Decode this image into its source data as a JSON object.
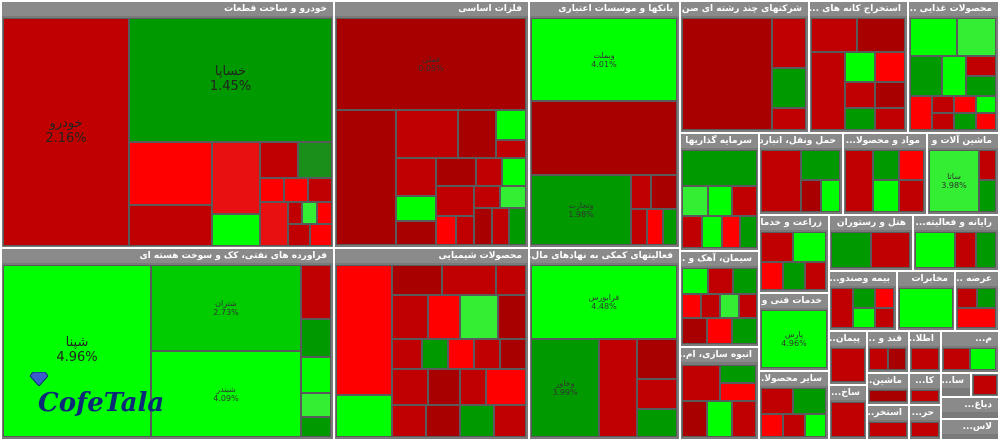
{
  "sectors": {
    "automotive": {
      "title": "خودرو و ساخت قطعات"
    },
    "metals": {
      "title": "فلزات اساسی"
    },
    "banks": {
      "title": "بانکها و موسسات اعتباری"
    },
    "multi": {
      "title": "شرکتهای چند رشته ای صن..."
    },
    "oil": {
      "title": "استخراج کانه های ..."
    },
    "food": {
      "title": "محصولات غذایی ..."
    },
    "it": {
      "title": "فراورده های نفتی، کک و سوخت هسته ای"
    },
    "chem": {
      "title": "محصولات شیمیایی"
    },
    "finance_aux": {
      "title": "فعالیتهای کمکی به نهادهای مال..."
    },
    "invest": {
      "title": "سرمایه گذاریها"
    },
    "transport": {
      "title": "حمل ونقل، انبارد..."
    },
    "materials": {
      "title": "مواد و محصولا..."
    },
    "machinery": {
      "title": "ماشین آلات و ..."
    },
    "farm": {
      "title": "زراعت و خدما..."
    },
    "hotel": {
      "title": "هتل و رستوران"
    },
    "computer": {
      "title": "رایانه و فعالیته..."
    },
    "cement": {
      "title": "سیمان، آهک و ..."
    },
    "insurance": {
      "title": "بیمه وصندو..."
    },
    "telecom": {
      "title": "مخابرات"
    },
    "supply": {
      "title": "عرضه ..."
    },
    "tech": {
      "title": "خدمات فنی و ..."
    },
    "contract": {
      "title": "پیمان..."
    },
    "sugar": {
      "title": "قند و ..."
    },
    "info": {
      "title": "اطلا..."
    },
    "mass": {
      "title": "انبوه سازی، ام..."
    },
    "other": {
      "title": "سایر محصولا..."
    },
    "build": {
      "title": "ساخ..."
    },
    "mach2": {
      "title": "ماشین..."
    },
    "extract": {
      "title": "استخر..."
    },
    "misc1": {
      "title": "م..."
    },
    "misc2": {
      "title": "کا..."
    },
    "misc3": {
      "title": "سا..."
    },
    "misc4": {
      "title": "دباغ..."
    },
    "misc5": {
      "title": "حر..."
    },
    "misc6": {
      "title": "لاس..."
    }
  },
  "tiles": {
    "khodro": {
      "name": "خودرو",
      "pct": "2.16%"
    },
    "khsapa": {
      "name": "خساپا",
      "pct": "1.45%"
    },
    "fameli": {
      "name": "فملی",
      "pct": "0.05%"
    },
    "vbmellat": {
      "name": "وبملت",
      "pct": "4.01%"
    },
    "vtejarat": {
      "name": "وتجارت",
      "pct": "1.98%"
    },
    "shpna": {
      "name": "شپنا",
      "pct": "4.96%"
    },
    "shtran": {
      "name": "شتران",
      "pct": "2.73%"
    },
    "shbandar": {
      "name": "شبندر",
      "pct": "4.09%"
    },
    "fa_tile": {
      "name": "فرابورس",
      "pct": "4.48%"
    },
    "vkhazer": {
      "name": "وخاور",
      "pct": "3.99%"
    },
    "sata": {
      "name": "ساتا",
      "pct": "3.98%"
    },
    "pars": {
      "name": "پارس",
      "pct": "4.96%"
    }
  },
  "logo": {
    "text": "CofeTala"
  },
  "colors": {
    "up": "#00cc00",
    "down": "#c00000",
    "strong_down": "#ff0000",
    "strong_up": "#00ff00"
  }
}
